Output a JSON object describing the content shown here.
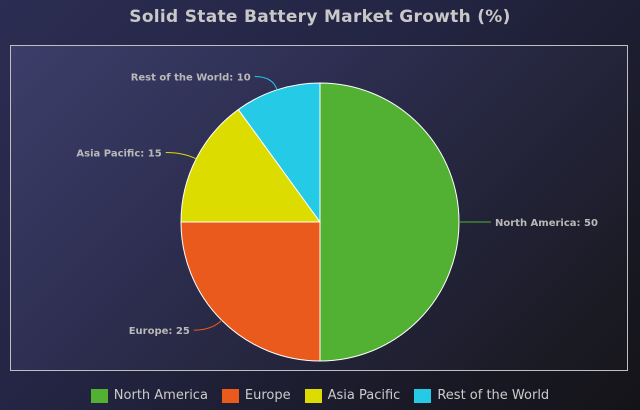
{
  "chart_data": {
    "type": "pie",
    "title": "Solid State Battery Market Growth (%)",
    "categories": [
      "North America",
      "Europe",
      "Asia Pacific",
      "Rest of the World"
    ],
    "values": [
      50,
      25,
      15,
      10
    ],
    "colors": [
      "#52b133",
      "#ea5a1c",
      "#dcdc00",
      "#25cbe6"
    ],
    "slice_labels": [
      "North America: 50",
      "Europe: 25",
      "Asia Pacific: 15",
      "Rest of the World: 10"
    ],
    "legend": {
      "position": "bottom",
      "items": [
        "North America",
        "Europe",
        "Asia Pacific",
        "Rest of the World"
      ]
    },
    "start_angle": "top",
    "direction": "clockwise"
  }
}
